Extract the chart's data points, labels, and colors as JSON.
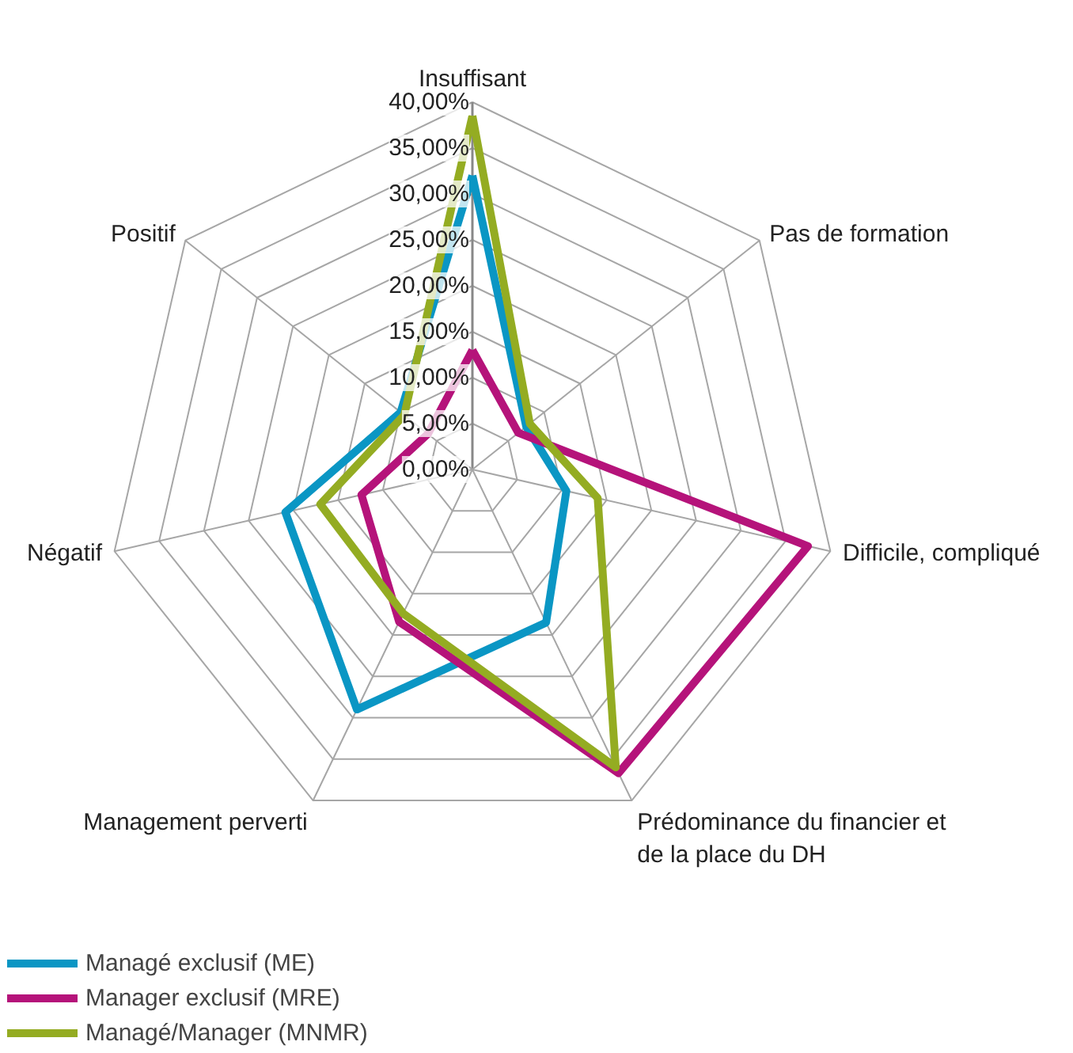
{
  "chart_data": {
    "type": "radar",
    "categories": [
      "Insuffisant",
      "Pas de formation",
      "Difficile, compliqué",
      "Prédominance du financier et de la place du DH",
      "Management perverti",
      "Négatif",
      "Positif"
    ],
    "series": [
      {
        "name": "Managé exclusif (ME)",
        "color": "#0a96c4",
        "values": [
          32,
          7.5,
          10.5,
          18.5,
          29,
          20.9,
          10
        ]
      },
      {
        "name": "Manager exclusif (MRE)",
        "color": "#b5137a",
        "values": [
          13,
          6.4,
          37.5,
          36.7,
          18.4,
          12.4,
          6.2
        ]
      },
      {
        "name": "Managé/Manager (MNMR)",
        "color": "#94ac22",
        "values": [
          38.5,
          8,
          14,
          36,
          17.4,
          17,
          9.5
        ]
      }
    ],
    "ylim": [
      0,
      40
    ],
    "yticks": [
      {
        "value": 0,
        "label": "0,00%"
      },
      {
        "value": 5,
        "label": "5,00%"
      },
      {
        "value": 10,
        "label": "10,00%"
      },
      {
        "value": 15,
        "label": "15,00%"
      },
      {
        "value": 20,
        "label": "20,00%"
      },
      {
        "value": 25,
        "label": "25,00%"
      },
      {
        "value": 30,
        "label": "30,00%"
      },
      {
        "value": 35,
        "label": "35,00%"
      },
      {
        "value": 40,
        "label": "40,00%"
      }
    ],
    "legend": "bottom"
  }
}
